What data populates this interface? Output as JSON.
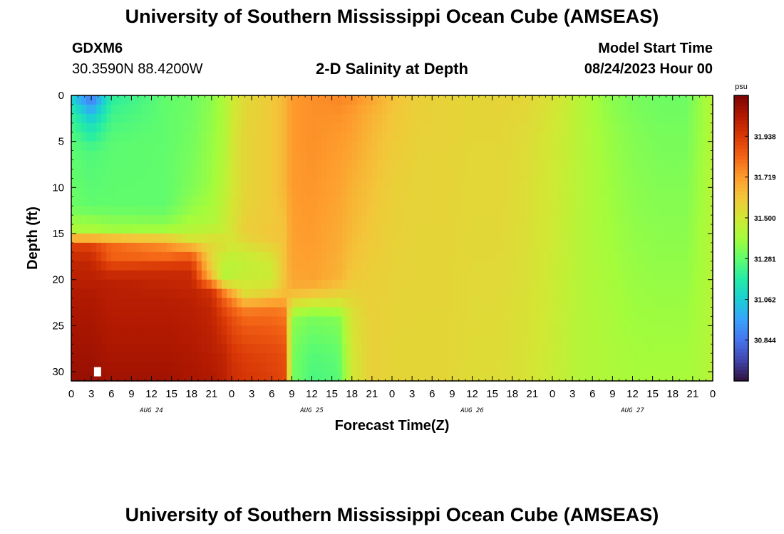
{
  "header": {
    "title": "University of Southern Mississippi Ocean Cube (AMSEAS)",
    "station_id": "GDXM6",
    "station_coords": "30.3590N  88.4200W",
    "chart_title": "2-D Salinity at Depth",
    "model_start_label": "Model Start Time",
    "model_start_value": "08/24/2023 Hour 00"
  },
  "footer": {
    "title": "University of Southern Mississippi Ocean Cube (AMSEAS)"
  },
  "chart_data": {
    "type": "heatmap",
    "xlabel": "Forecast Time(Z)",
    "ylabel": "Depth (ft)",
    "x_tick_labels": [
      "0",
      "3",
      "6",
      "9",
      "12",
      "15",
      "18",
      "21",
      "0",
      "3",
      "6",
      "9",
      "12",
      "15",
      "18",
      "21",
      "0",
      "3",
      "6",
      "9",
      "12",
      "15",
      "18",
      "21",
      "0",
      "3",
      "6",
      "9",
      "12",
      "15",
      "18",
      "21",
      "0"
    ],
    "x_range_hours": [
      0,
      96
    ],
    "x_tick_step_hours": 3,
    "date_labels": [
      {
        "text": "AUG 24",
        "hour": 12
      },
      {
        "text": "AUG 25",
        "hour": 36
      },
      {
        "text": "AUG 26",
        "hour": 60
      },
      {
        "text": "AUG 27",
        "hour": 84
      }
    ],
    "y_range": [
      0,
      31
    ],
    "y_ticks": [
      0,
      5,
      10,
      15,
      20,
      25,
      30
    ],
    "y_inverted": true,
    "colorbar": {
      "unit": "psu",
      "ticks": [
        "31.938",
        "31.719",
        "31.500",
        "31.281",
        "31.062",
        "30.844"
      ],
      "tick_values": [
        31.938,
        31.719,
        31.5,
        31.281,
        31.062,
        30.844
      ],
      "range": [
        30.625,
        32.157
      ]
    },
    "colors": {
      "colormap": [
        "#30123b",
        "#4145ab",
        "#4675ed",
        "#39a2fc",
        "#1bcfd4",
        "#24eca6",
        "#61fc6c",
        "#a4fc3b",
        "#d1e834",
        "#f3c63a",
        "#fe9b2d",
        "#f36315",
        "#d93806",
        "#b11901",
        "#7a0403"
      ]
    },
    "grid": false,
    "profiles": [
      {
        "hour": 0,
        "depths": [
          0,
          2,
          5,
          12,
          14,
          15,
          16,
          18,
          22,
          28,
          31
        ],
        "values": [
          31.05,
          31.2,
          31.27,
          31.3,
          31.39,
          31.42,
          31.9,
          32.0,
          32.05,
          32.08,
          32.1
        ]
      },
      {
        "hour": 3,
        "depths": [
          0,
          1,
          3,
          6,
          12,
          14,
          15,
          16,
          18,
          22,
          28,
          31
        ],
        "values": [
          30.82,
          30.92,
          31.1,
          31.25,
          31.28,
          31.38,
          31.42,
          31.9,
          32.0,
          32.05,
          32.08,
          32.1
        ]
      },
      {
        "hour": 6,
        "depths": [
          0,
          2,
          5,
          12,
          14,
          15,
          16,
          17,
          20,
          28,
          31
        ],
        "values": [
          31.18,
          31.22,
          31.27,
          31.28,
          31.36,
          31.4,
          31.85,
          31.8,
          32.02,
          32.06,
          32.08
        ]
      },
      {
        "hour": 14,
        "depths": [
          0,
          5,
          12,
          14,
          15,
          16,
          17,
          19,
          22,
          28,
          31
        ],
        "values": [
          31.28,
          31.28,
          31.28,
          31.35,
          31.42,
          31.75,
          31.76,
          31.98,
          32.03,
          32.06,
          32.08
        ]
      },
      {
        "hour": 18,
        "depths": [
          0,
          4,
          10,
          13,
          15,
          16,
          17,
          19,
          22,
          28,
          31
        ],
        "values": [
          31.3,
          31.31,
          31.33,
          31.38,
          31.45,
          31.55,
          31.8,
          31.98,
          32.02,
          32.05,
          32.06
        ]
      },
      {
        "hour": 21,
        "depths": [
          0,
          5,
          10,
          14,
          16,
          18,
          20,
          21,
          23,
          28,
          31
        ],
        "values": [
          31.35,
          31.37,
          31.38,
          31.42,
          31.55,
          31.55,
          31.65,
          31.95,
          32.0,
          32.03,
          32.05
        ]
      },
      {
        "hour": 23,
        "depths": [
          0,
          5,
          10,
          15,
          16,
          18,
          20,
          21,
          22,
          24,
          28,
          31
        ],
        "values": [
          31.42,
          31.42,
          31.45,
          31.48,
          31.55,
          31.45,
          31.42,
          31.7,
          31.82,
          31.92,
          32.0,
          32.02
        ]
      },
      {
        "hour": 24,
        "depths": [
          0,
          5,
          10,
          15,
          16,
          18,
          20,
          21,
          22,
          24,
          28,
          31
        ],
        "values": [
          31.48,
          31.5,
          31.5,
          31.52,
          31.5,
          31.45,
          31.45,
          31.6,
          31.76,
          31.88,
          31.95,
          31.98
        ]
      },
      {
        "hour": 26,
        "depths": [
          0,
          5,
          10,
          15,
          18,
          20,
          22,
          23,
          25,
          28,
          31
        ],
        "values": [
          31.55,
          31.56,
          31.56,
          31.58,
          31.46,
          31.48,
          31.55,
          31.76,
          31.85,
          31.92,
          31.95
        ]
      },
      {
        "hour": 30,
        "depths": [
          0,
          5,
          10,
          14,
          15,
          18,
          20,
          22,
          23,
          25,
          28,
          31
        ],
        "values": [
          31.6,
          31.6,
          31.6,
          31.6,
          31.62,
          31.5,
          31.48,
          31.62,
          31.78,
          31.84,
          31.9,
          31.92
        ]
      },
      {
        "hour": 32,
        "depths": [
          0,
          5,
          10,
          14,
          18,
          20,
          22,
          23,
          25,
          28,
          31
        ],
        "values": [
          31.65,
          31.65,
          31.65,
          31.62,
          31.62,
          31.62,
          31.65,
          31.76,
          31.82,
          31.88,
          31.9
        ]
      },
      {
        "hour": 33,
        "depths": [
          0,
          2,
          5,
          10,
          18,
          21,
          22,
          23,
          24,
          27,
          30,
          31
        ],
        "values": [
          31.72,
          31.72,
          31.72,
          31.72,
          31.7,
          31.68,
          31.58,
          31.5,
          31.36,
          31.33,
          31.32,
          31.32
        ]
      },
      {
        "hour": 36,
        "depths": [
          0,
          2,
          5,
          10,
          15,
          20,
          21,
          22,
          24,
          28,
          31
        ],
        "values": [
          31.74,
          31.74,
          31.74,
          31.73,
          31.72,
          31.7,
          31.66,
          31.56,
          31.32,
          31.26,
          31.24
        ]
      },
      {
        "hour": 40,
        "depths": [
          0,
          2,
          5,
          10,
          15,
          20,
          21,
          22,
          24,
          28,
          31
        ],
        "values": [
          31.76,
          31.74,
          31.72,
          31.7,
          31.68,
          31.66,
          31.6,
          31.55,
          31.34,
          31.28,
          31.26
        ]
      },
      {
        "hour": 42,
        "depths": [
          0,
          2,
          5,
          10,
          15,
          20,
          22,
          24,
          28,
          31
        ],
        "values": [
          31.75,
          31.72,
          31.7,
          31.66,
          31.64,
          31.6,
          31.56,
          31.52,
          31.5,
          31.5
        ]
      },
      {
        "hour": 45,
        "depths": [
          0,
          2,
          5,
          10,
          20,
          31
        ],
        "values": [
          31.7,
          31.66,
          31.64,
          31.62,
          31.58,
          31.58
        ]
      },
      {
        "hour": 48,
        "depths": [
          0,
          5,
          10,
          20,
          31
        ],
        "values": [
          31.62,
          31.6,
          31.58,
          31.57,
          31.56
        ]
      },
      {
        "hour": 52,
        "depths": [
          0,
          5,
          31
        ],
        "values": [
          31.58,
          31.57,
          31.56
        ]
      },
      {
        "hour": 56,
        "depths": [
          0,
          5,
          31
        ],
        "values": [
          31.57,
          31.57,
          31.56
        ]
      },
      {
        "hour": 60,
        "depths": [
          0,
          5,
          31
        ],
        "values": [
          31.56,
          31.56,
          31.54
        ]
      },
      {
        "hour": 64,
        "depths": [
          0,
          5,
          31
        ],
        "values": [
          31.57,
          31.56,
          31.54
        ]
      },
      {
        "hour": 68,
        "depths": [
          0,
          5,
          31
        ],
        "values": [
          31.56,
          31.54,
          31.52
        ]
      },
      {
        "hour": 72,
        "depths": [
          0,
          5,
          31
        ],
        "values": [
          31.52,
          31.5,
          31.48
        ]
      },
      {
        "hour": 76,
        "depths": [
          0,
          5,
          31
        ],
        "values": [
          31.44,
          31.44,
          31.43
        ]
      },
      {
        "hour": 80,
        "depths": [
          0,
          5,
          31
        ],
        "values": [
          31.36,
          31.38,
          31.42
        ]
      },
      {
        "hour": 84,
        "depths": [
          0,
          5,
          31
        ],
        "values": [
          31.32,
          31.34,
          31.4
        ]
      },
      {
        "hour": 88,
        "depths": [
          0,
          5,
          31
        ],
        "values": [
          31.3,
          31.32,
          31.4
        ]
      },
      {
        "hour": 92,
        "depths": [
          0,
          5,
          31
        ],
        "values": [
          31.3,
          31.32,
          31.4
        ]
      },
      {
        "hour": 95,
        "depths": [
          0,
          5,
          31
        ],
        "values": [
          31.4,
          31.4,
          31.42
        ]
      },
      {
        "hour": 96,
        "depths": [
          0,
          5,
          31
        ],
        "values": [
          31.45,
          31.45,
          31.45
        ]
      }
    ]
  }
}
